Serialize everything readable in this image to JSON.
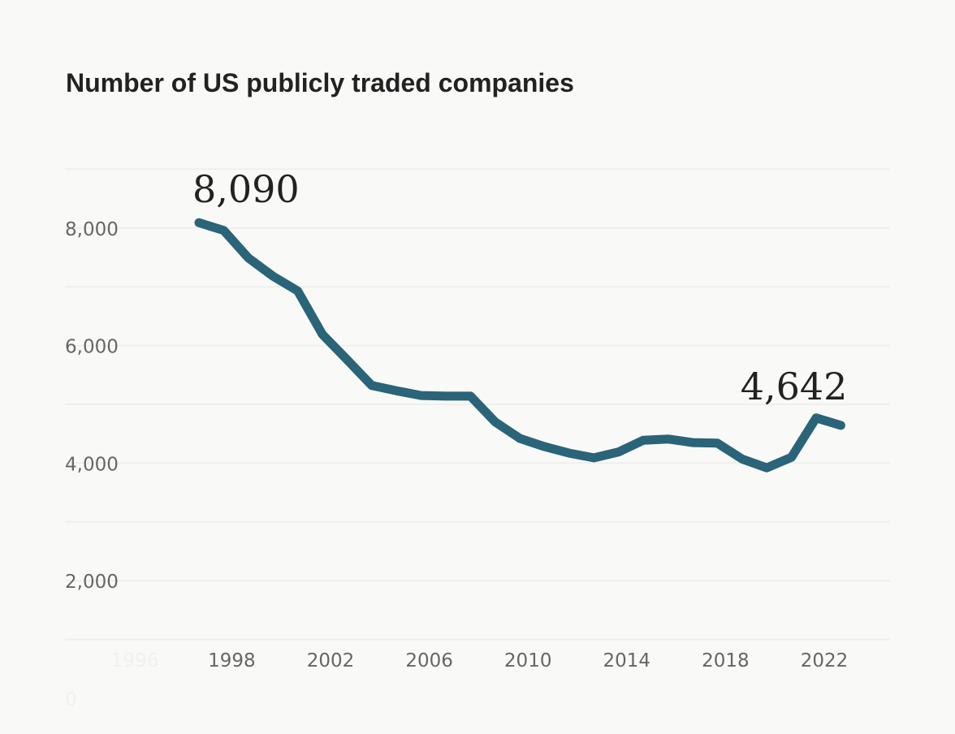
{
  "chart_data": {
    "type": "line",
    "title": "Number of US publicly traded companies",
    "xlabel": "",
    "ylabel": "",
    "x": [
      1997,
      1998,
      1999,
      2000,
      2001,
      2002,
      2003,
      2004,
      2005,
      2006,
      2007,
      2008,
      2009,
      2010,
      2011,
      2012,
      2013,
      2014,
      2015,
      2016,
      2017,
      2018,
      2019,
      2020,
      2021,
      2022,
      2023
    ],
    "series": [
      {
        "values": [
          8090,
          7960,
          7490,
          7180,
          6930,
          6190,
          5760,
          5320,
          5230,
          5150,
          5140,
          5140,
          4700,
          4420,
          4280,
          4170,
          4090,
          4190,
          4390,
          4410,
          4350,
          4340,
          4070,
          3920,
          4100,
          4770,
          4642
        ],
        "color": "#2a6478"
      }
    ],
    "ylim": [
      0,
      9000
    ],
    "y_ticks": [
      {
        "v": 0,
        "label": "0",
        "faint": true
      },
      {
        "v": 2000,
        "label": "2,000"
      },
      {
        "v": 4000,
        "label": "4,000"
      },
      {
        "v": 6000,
        "label": "6,000"
      },
      {
        "v": 8000,
        "label": "8,000"
      }
    ],
    "x_ticks": [
      {
        "v": 1996,
        "label": "1996",
        "faint": true
      },
      {
        "v": 1998,
        "label": "1998"
      },
      {
        "v": 2002,
        "label": "2002"
      },
      {
        "v": 2006,
        "label": "2006"
      },
      {
        "v": 2010,
        "label": "2010"
      },
      {
        "v": 2014,
        "label": "2014"
      },
      {
        "v": 2018,
        "label": "2018"
      },
      {
        "v": 2022,
        "label": "2022"
      }
    ],
    "gridlines": [
      1000,
      2000,
      3000,
      4000,
      5000,
      6000,
      7000,
      8000,
      9000
    ],
    "grid": true,
    "annotations": [
      {
        "year": 1997,
        "value": 8090,
        "label": "8,090"
      },
      {
        "year": 2023,
        "value": 4642,
        "label": "4,642"
      }
    ],
    "background": "#f9f9f7"
  }
}
